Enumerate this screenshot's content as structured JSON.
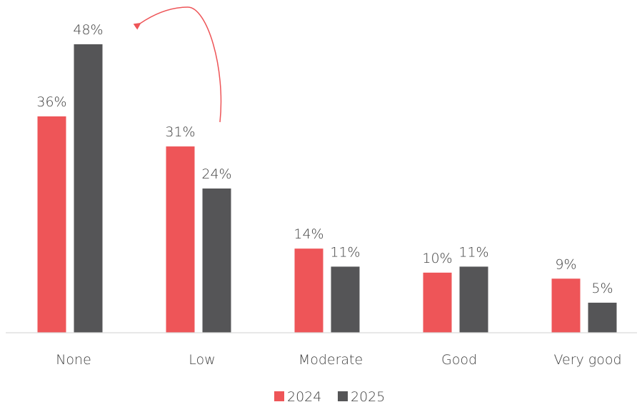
{
  "chart_data": {
    "type": "bar",
    "categories": [
      "None",
      "Low",
      "Moderate",
      "Good",
      "Very good"
    ],
    "series": [
      {
        "name": "2024",
        "values": [
          36,
          31,
          14,
          10,
          9
        ],
        "labels": [
          "36%",
          "31%",
          "14%",
          "10%",
          "9%"
        ],
        "color": "#ee5558"
      },
      {
        "name": "2025",
        "values": [
          48,
          24,
          11,
          11,
          5
        ],
        "labels": [
          "48%",
          "24%",
          "11%",
          "11%",
          "5%"
        ],
        "color": "#555557"
      }
    ],
    "ylim": [
      0,
      48
    ],
    "grid": false,
    "legend": "bottom",
    "annotation": {
      "type": "curved-arrow",
      "from": "Low",
      "to": "None",
      "color": "#ee5558"
    },
    "axis_color": "#d9d9d9"
  }
}
